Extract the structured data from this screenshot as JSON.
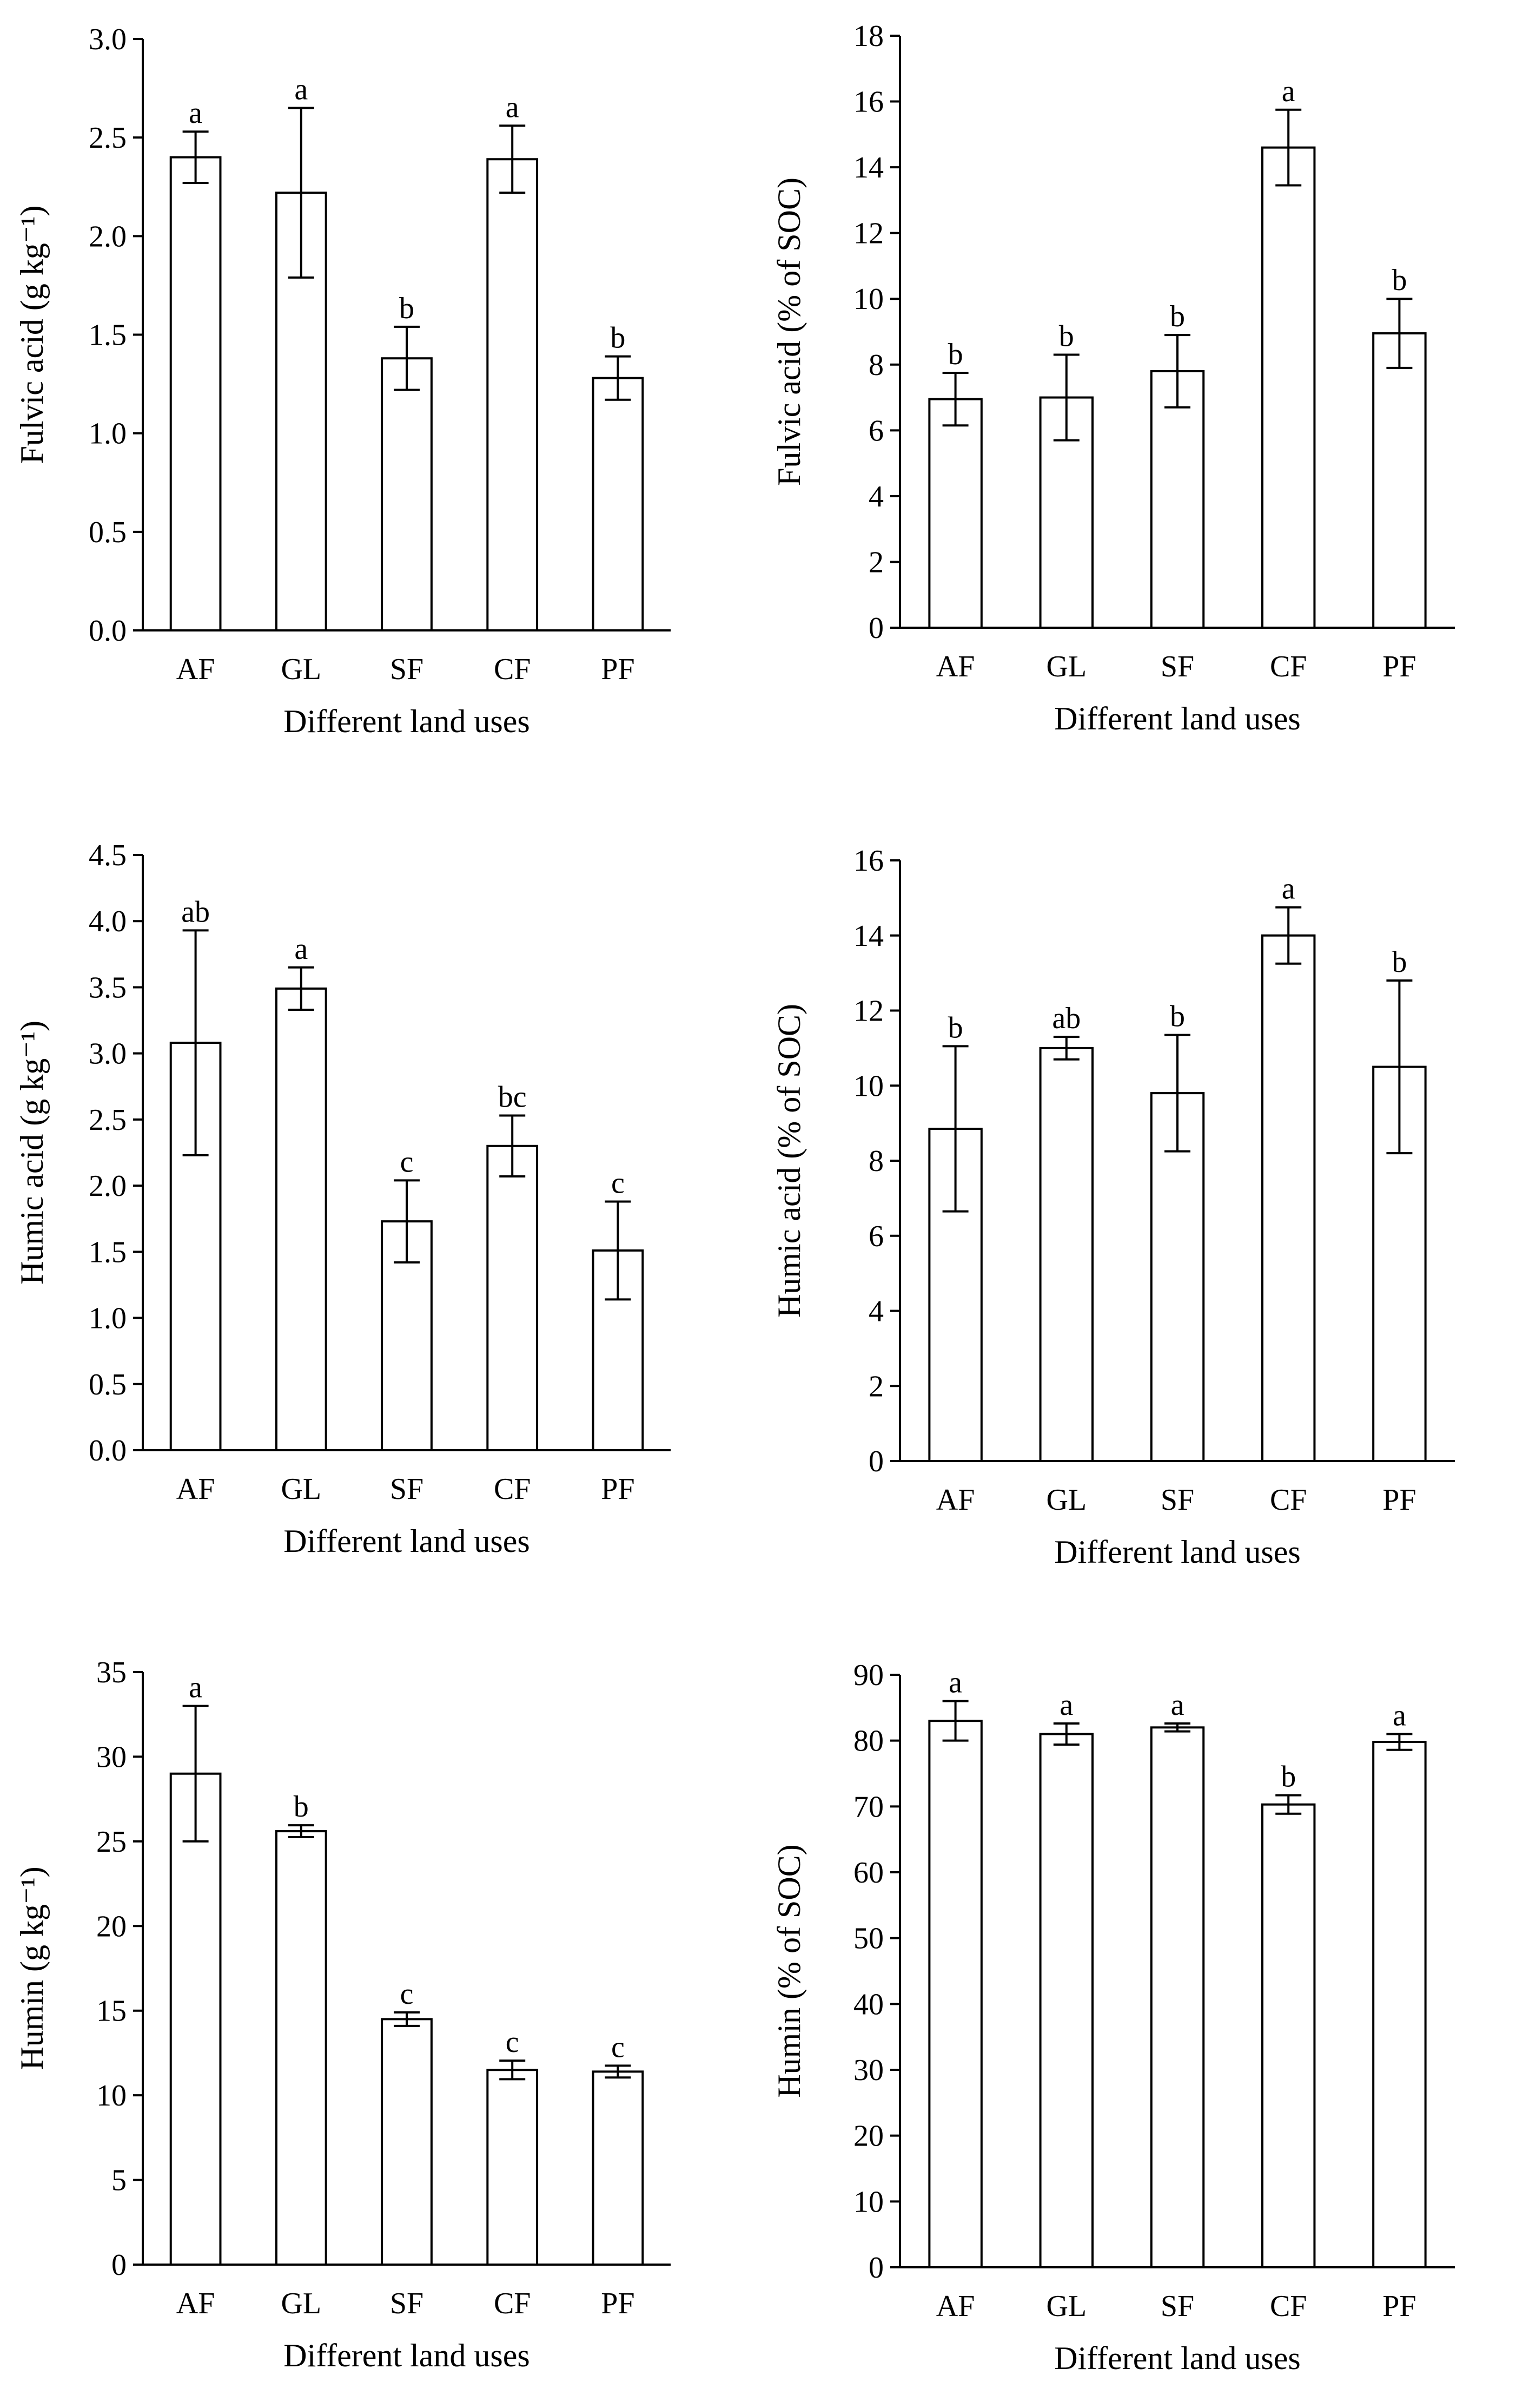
{
  "figure": {
    "xlabel_common": "Different land uses",
    "categories": [
      "AF",
      "GL",
      "SF",
      "CF",
      "PF"
    ]
  },
  "chart_data": [
    {
      "type": "bar",
      "ylabel": "Fulvic acid (g kg⁻¹)",
      "xlabel": "Different land uses",
      "categories": [
        "AF",
        "GL",
        "SF",
        "CF",
        "PF"
      ],
      "values": [
        2.4,
        2.22,
        1.38,
        2.39,
        1.28
      ],
      "errors": [
        0.13,
        0.43,
        0.16,
        0.17,
        0.11
      ],
      "labels": [
        "a",
        "a",
        "b",
        "a",
        "b"
      ],
      "ylim": [
        0,
        3.0
      ],
      "yticks": [
        "0.0",
        "0.5",
        "1.0",
        "1.5",
        "2.0",
        "2.5",
        "3.0"
      ],
      "ytick_values": [
        0,
        0.5,
        1.0,
        1.5,
        2.0,
        2.5,
        3.0
      ]
    },
    {
      "type": "bar",
      "ylabel": "Fulvic acid (% of SOC)",
      "xlabel": "Different land uses",
      "categories": [
        "AF",
        "GL",
        "SF",
        "CF",
        "PF"
      ],
      "values": [
        6.95,
        7.0,
        7.8,
        14.6,
        8.95
      ],
      "errors": [
        0.8,
        1.3,
        1.1,
        1.15,
        1.05
      ],
      "labels": [
        "b",
        "b",
        "b",
        "a",
        "b"
      ],
      "ylim": [
        0,
        18
      ],
      "yticks": [
        "0",
        "2",
        "4",
        "6",
        "8",
        "10",
        "12",
        "14",
        "16",
        "18"
      ],
      "ytick_values": [
        0,
        2,
        4,
        6,
        8,
        10,
        12,
        14,
        16,
        18
      ]
    },
    {
      "type": "bar",
      "ylabel": "Humic acid (g kg⁻¹)",
      "xlabel": "Different land uses",
      "categories": [
        "AF",
        "GL",
        "SF",
        "CF",
        "PF"
      ],
      "values": [
        3.08,
        3.49,
        1.73,
        2.3,
        1.51
      ],
      "errors": [
        0.85,
        0.16,
        0.31,
        0.23,
        0.37
      ],
      "labels": [
        "ab",
        "a",
        "c",
        "bc",
        "c"
      ],
      "ylim": [
        0,
        4.5
      ],
      "yticks": [
        "0.0",
        "0.5",
        "1.0",
        "1.5",
        "2.0",
        "2.5",
        "3.0",
        "3.5",
        "4.0",
        "4.5"
      ],
      "ytick_values": [
        0,
        0.5,
        1.0,
        1.5,
        2.0,
        2.5,
        3.0,
        3.5,
        4.0,
        4.5
      ]
    },
    {
      "type": "bar",
      "ylabel": "Humic acid (% of SOC)",
      "xlabel": "Different land uses",
      "categories": [
        "AF",
        "GL",
        "SF",
        "CF",
        "PF"
      ],
      "values": [
        8.85,
        11.0,
        9.8,
        14.0,
        10.5
      ],
      "errors": [
        2.2,
        0.3,
        1.55,
        0.75,
        2.3
      ],
      "labels": [
        "b",
        "ab",
        "b",
        "a",
        "b"
      ],
      "ylim": [
        0,
        16
      ],
      "yticks": [
        "0",
        "2",
        "4",
        "6",
        "8",
        "10",
        "12",
        "14",
        "16"
      ],
      "ytick_values": [
        0,
        2,
        4,
        6,
        8,
        10,
        12,
        14,
        16
      ]
    },
    {
      "type": "bar",
      "ylabel": "Humin (g kg⁻¹)",
      "xlabel": "Different land uses",
      "categories": [
        "AF",
        "GL",
        "SF",
        "CF",
        "PF"
      ],
      "values": [
        29.0,
        25.6,
        14.5,
        11.5,
        11.4
      ],
      "errors": [
        4.0,
        0.35,
        0.4,
        0.55,
        0.35
      ],
      "labels": [
        "a",
        "b",
        "c",
        "c",
        "c"
      ],
      "ylim": [
        0,
        35
      ],
      "yticks": [
        "0",
        "5",
        "10",
        "15",
        "20",
        "25",
        "30",
        "35"
      ],
      "ytick_values": [
        0,
        5,
        10,
        15,
        20,
        25,
        30,
        35
      ]
    },
    {
      "type": "bar",
      "ylabel": "Humin (% of SOC)",
      "xlabel": "Different land uses",
      "categories": [
        "AF",
        "GL",
        "SF",
        "CF",
        "PF"
      ],
      "values": [
        83.0,
        81.0,
        82.0,
        70.3,
        79.8
      ],
      "errors": [
        3.0,
        1.6,
        0.6,
        1.4,
        1.2
      ],
      "labels": [
        "a",
        "a",
        "a",
        "b",
        "a"
      ],
      "ylim": [
        0,
        90
      ],
      "yticks": [
        "0",
        "10",
        "20",
        "30",
        "40",
        "50",
        "60",
        "70",
        "80",
        "90"
      ],
      "ytick_values": [
        0,
        10,
        20,
        30,
        40,
        50,
        60,
        70,
        80,
        90
      ]
    }
  ]
}
